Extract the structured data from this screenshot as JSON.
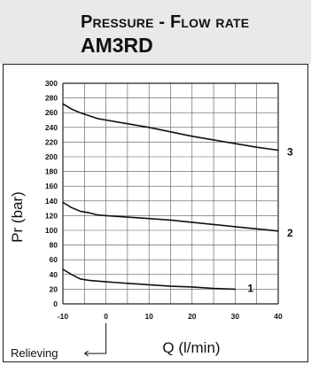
{
  "header": {
    "title": "Pressure - Flow rate",
    "model": "AM3RD"
  },
  "chart_data": {
    "type": "line",
    "title": "",
    "xlabel": "Q (l/min)",
    "ylabel": "Pr (bar)",
    "xlim": [
      -10,
      40
    ],
    "ylim": [
      0,
      300
    ],
    "x_ticks": [
      -10,
      0,
      10,
      20,
      30,
      40
    ],
    "y_ticks": [
      0,
      20,
      40,
      60,
      80,
      100,
      120,
      140,
      160,
      180,
      200,
      220,
      240,
      260,
      280,
      300
    ],
    "x_grid_step": 5,
    "y_grid_step": 20,
    "grid": true,
    "annotation": "Relieving",
    "series": [
      {
        "name": "1",
        "x": [
          -10,
          -8,
          -6,
          -4,
          0,
          5,
          10,
          15,
          20,
          25,
          30
        ],
        "y": [
          47,
          40,
          34,
          32,
          30,
          28,
          26,
          24,
          23,
          21,
          20
        ]
      },
      {
        "name": "2",
        "x": [
          -10,
          -8,
          -6,
          -4,
          -2,
          0,
          5,
          10,
          15,
          20,
          25,
          30,
          35,
          40
        ],
        "y": [
          138,
          131,
          126,
          124,
          121,
          120,
          118,
          116,
          114,
          111,
          108,
          105,
          102,
          99
        ]
      },
      {
        "name": "3",
        "x": [
          -10,
          -8,
          -6,
          -4,
          -2,
          0,
          5,
          10,
          15,
          20,
          25,
          30,
          35,
          40
        ],
        "y": [
          272,
          265,
          260,
          256,
          252,
          250,
          245,
          240,
          234,
          228,
          223,
          218,
          213,
          209
        ]
      }
    ]
  }
}
